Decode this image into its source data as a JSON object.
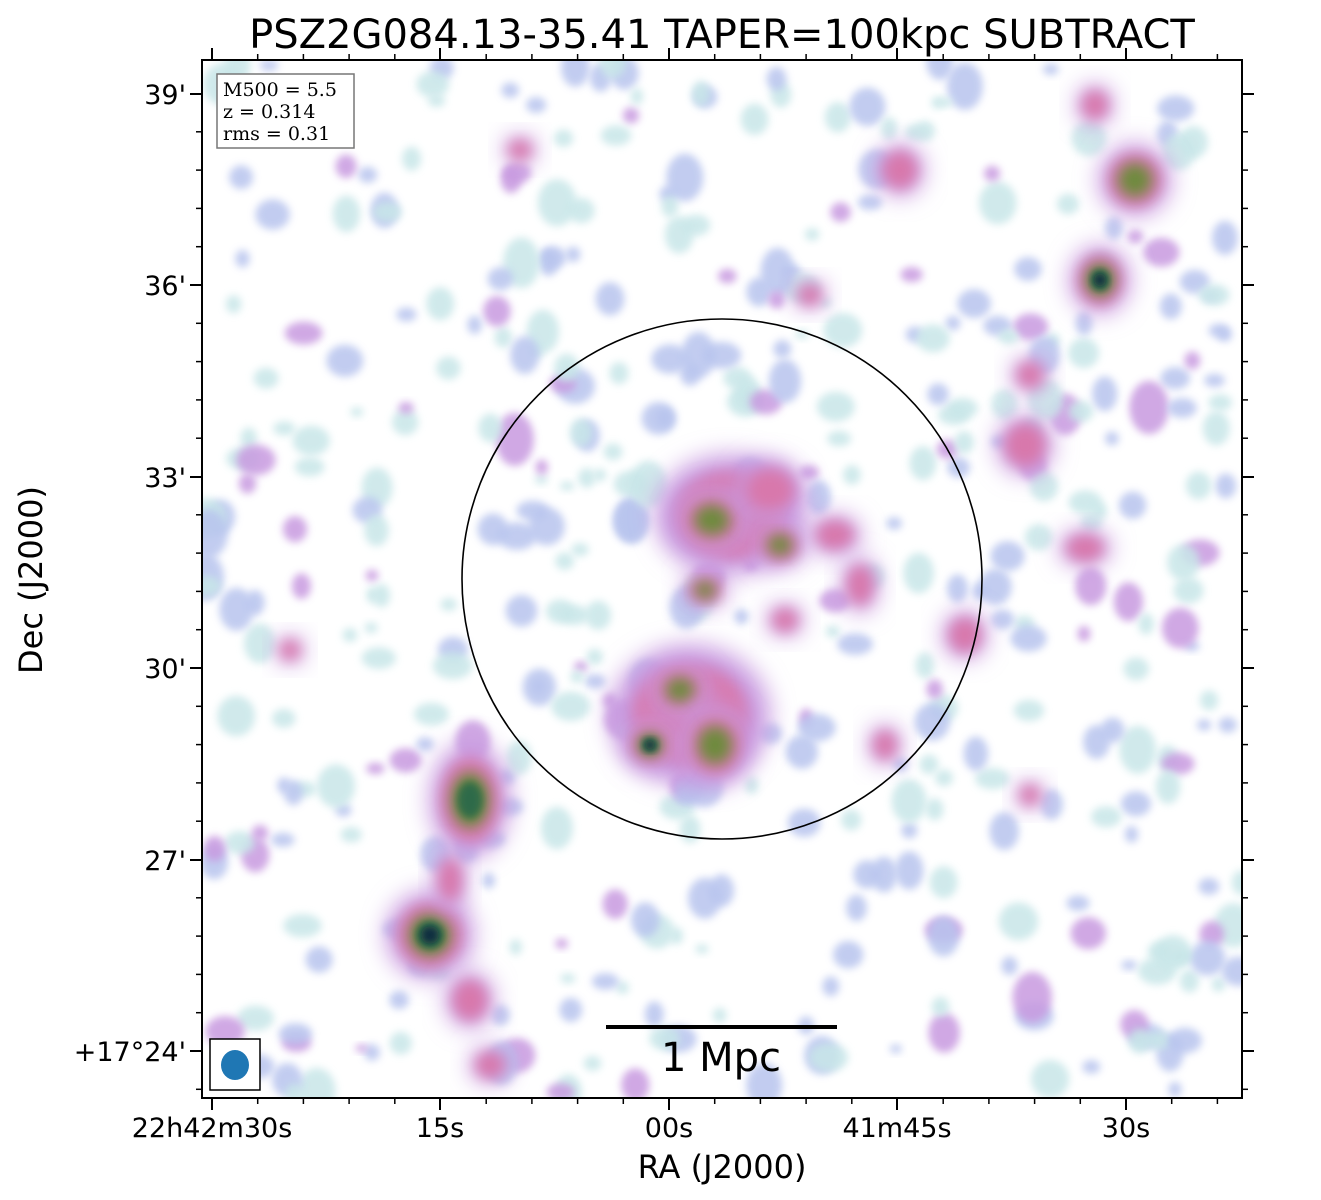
{
  "chart_data": {
    "type": "heatmap",
    "title": "PSZ2G084.13-35.41 TAPER=100kpc SUBTRACT",
    "xlabel": "RA (J2000)",
    "ylabel": "Dec (J2000)",
    "x_ticks": [
      "22h42m30s",
      "15s",
      "00s",
      "41m45s",
      "30s"
    ],
    "y_ticks": [
      "+17°24'",
      "27'",
      "30'",
      "33'",
      "36'",
      "39'"
    ],
    "info": {
      "m500": "M500 = 5.5",
      "z": "z = 0.314",
      "rms": "rms = 0.31"
    },
    "scalebar_label": "1 Mpc",
    "colormap": [
      "#ffffff",
      "#c8e6e8",
      "#b8c4ee",
      "#c89ae0",
      "#d878ac",
      "#6e8a3c",
      "#2f6a48",
      "#0c2a40"
    ],
    "beam_color": "#1f77b4",
    "bright_sources": [
      {
        "ra": "22h42m14s",
        "dec": "+17°25.8'",
        "peak": "very high"
      },
      {
        "ra": "22h42m12s",
        "dec": "+17°27.8'",
        "peak": "high"
      },
      {
        "ra": "22h41m58s",
        "dec": "+17°28.9'",
        "peak": "high"
      },
      {
        "ra": "22h41m54s",
        "dec": "+17°32.3'",
        "peak": "medium"
      },
      {
        "ra": "22h41m32s",
        "dec": "+17°36.1'",
        "peak": "high"
      },
      {
        "ra": "22h41m30s",
        "dec": "+17°37.6'",
        "peak": "medium"
      }
    ]
  }
}
